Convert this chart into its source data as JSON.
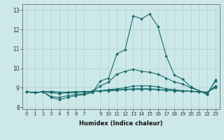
{
  "xlabel": "Humidex (Indice chaleur)",
  "ylabel": "",
  "xlim": [
    -0.5,
    23.5
  ],
  "ylim": [
    7.9,
    13.3
  ],
  "yticks": [
    8,
    9,
    10,
    11,
    12,
    13
  ],
  "xticks": [
    0,
    1,
    2,
    3,
    4,
    5,
    6,
    7,
    9,
    10,
    11,
    12,
    13,
    14,
    15,
    16,
    17,
    18,
    19,
    20,
    21,
    22,
    23
  ],
  "bg_color": "#cce8e8",
  "line_color": "#1a6b6b",
  "series": [
    [
      8.8,
      8.75,
      8.8,
      8.5,
      8.4,
      8.5,
      8.6,
      8.65,
      8.75,
      9.35,
      9.5,
      10.75,
      10.95,
      12.7,
      12.55,
      12.8,
      12.15,
      10.65,
      9.65,
      9.45,
      9.05,
      8.85,
      8.65,
      9.4
    ],
    [
      8.8,
      8.75,
      8.8,
      8.55,
      8.5,
      8.6,
      8.65,
      8.7,
      8.8,
      9.1,
      9.3,
      9.7,
      9.85,
      9.95,
      9.85,
      9.8,
      9.7,
      9.5,
      9.3,
      9.2,
      9.0,
      8.85,
      8.7,
      9.35
    ],
    [
      8.8,
      8.75,
      8.8,
      8.75,
      8.7,
      8.75,
      8.75,
      8.8,
      8.82,
      8.85,
      8.9,
      8.95,
      9.0,
      9.1,
      9.1,
      9.1,
      9.05,
      8.95,
      8.9,
      8.85,
      8.82,
      8.8,
      8.75,
      9.1
    ],
    [
      8.8,
      8.75,
      8.8,
      8.8,
      8.78,
      8.78,
      8.78,
      8.8,
      8.82,
      8.85,
      8.88,
      8.9,
      8.92,
      8.95,
      8.95,
      8.95,
      8.92,
      8.88,
      8.85,
      8.83,
      8.82,
      8.8,
      8.78,
      9.05
    ],
    [
      8.8,
      8.75,
      8.8,
      8.8,
      8.78,
      8.78,
      8.8,
      8.8,
      8.82,
      8.83,
      8.85,
      8.87,
      8.9,
      8.92,
      8.92,
      8.92,
      8.9,
      8.87,
      8.85,
      8.83,
      8.82,
      8.8,
      8.78,
      9.0
    ]
  ]
}
